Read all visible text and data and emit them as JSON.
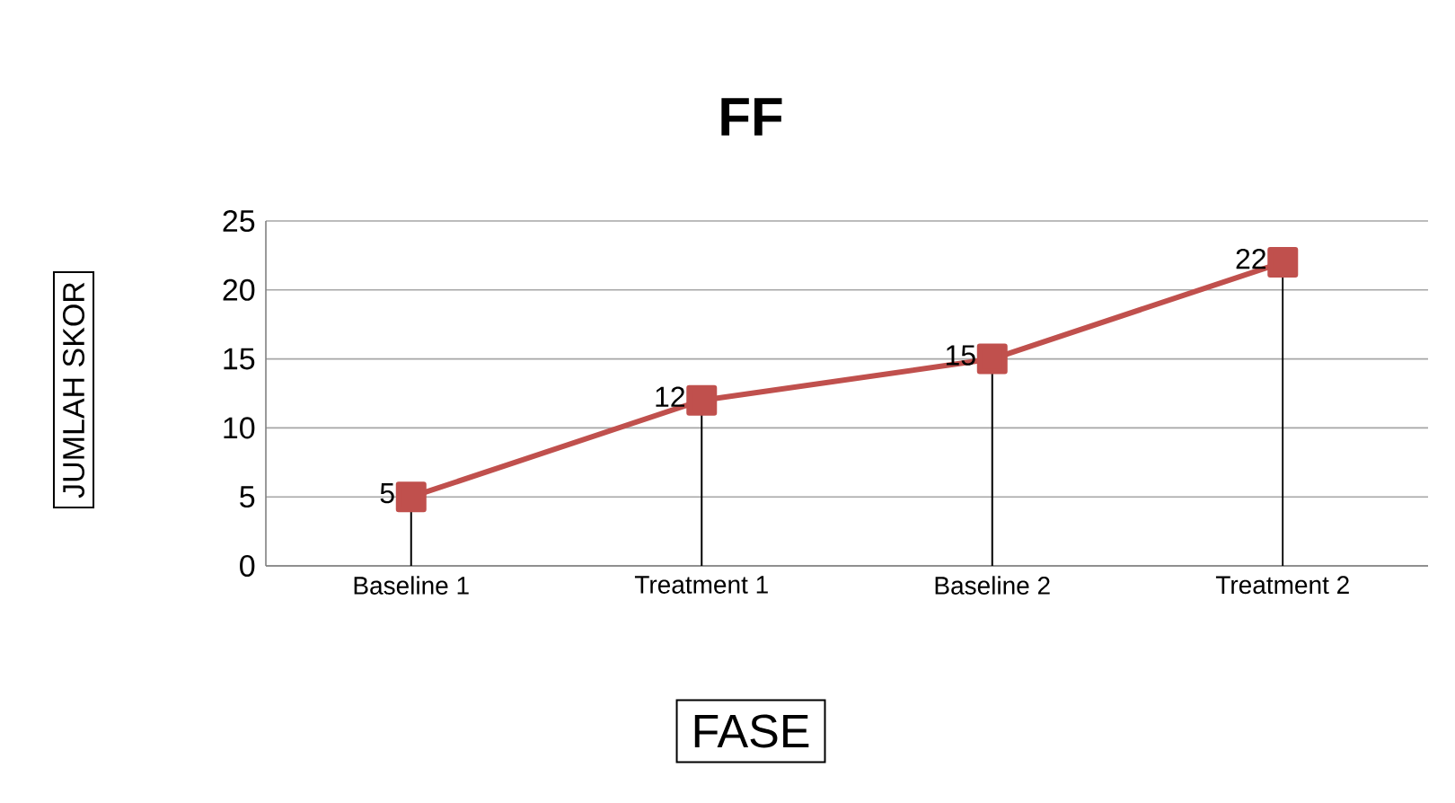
{
  "chart_data": {
    "type": "line",
    "title": "FF",
    "xlabel": "FASE",
    "ylabel": "JUMLAH SKOR",
    "categories": [
      "Baseline 1",
      "Treatment 1",
      "Baseline 2",
      "Treatment 2"
    ],
    "series": [
      {
        "color": "#c0504d",
        "values": [
          5,
          12,
          15,
          22
        ],
        "errors": [
          [
            0,
            5
          ],
          [
            0,
            12
          ],
          [
            0,
            15
          ],
          [
            0,
            22
          ]
        ]
      }
    ],
    "ylim": [
      0,
      25
    ],
    "yticks": [
      0,
      5,
      10,
      15,
      20,
      25
    ],
    "grid": "y",
    "marker": "square",
    "line_style": "solid",
    "data_labels": true
  }
}
